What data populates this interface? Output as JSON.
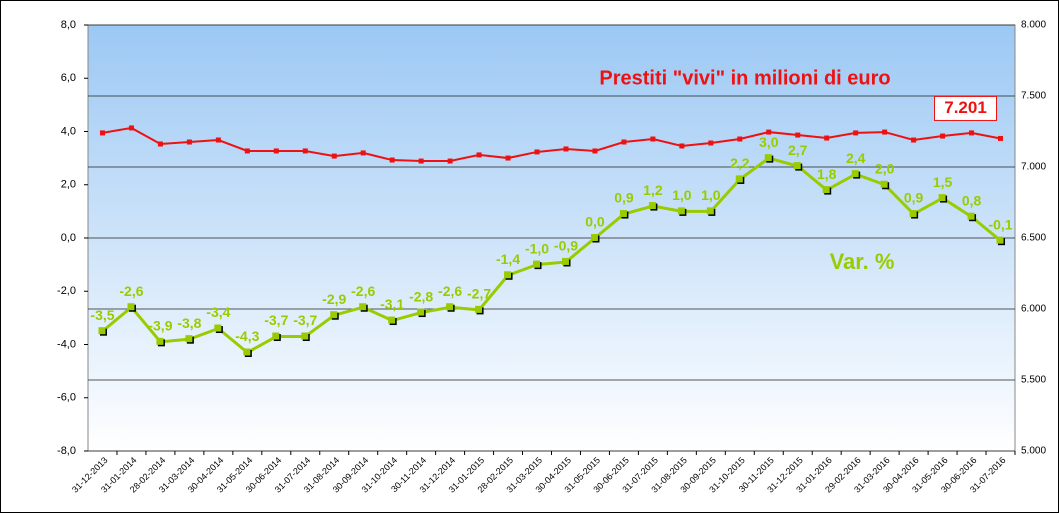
{
  "chart_data": {
    "type": "line",
    "title": "Prestiti \"vivi\" in milioni di euro",
    "annotation": "Var. %",
    "categories": [
      "31-12-2013",
      "31-01-2014",
      "28-02-2014",
      "31-03-2014",
      "30-04-2014",
      "31-05-2014",
      "30-06-2014",
      "31-07-2014",
      "31-08-2014",
      "30-09-2014",
      "31-10-2014",
      "30-11-2014",
      "31-12-2014",
      "31-01-2015",
      "28-02-2015",
      "31-03-2015",
      "30-04-2015",
      "31-05-2015",
      "30-06-2015",
      "31-07-2015",
      "31-08-2015",
      "30-09-2015",
      "31-10-2015",
      "30-11-2015",
      "31-12-2015",
      "31-01-2016",
      "29-02-2016",
      "31-03-2016",
      "30-04-2016",
      "31-05-2016",
      "30-06-2016",
      "31-07-2016"
    ],
    "series": [
      {
        "name": "Var. %",
        "color": "#99cc00",
        "axis": "y",
        "values": [
          -3.5,
          -2.6,
          -3.9,
          -3.8,
          -3.4,
          -4.3,
          -3.7,
          -3.7,
          -2.9,
          -2.6,
          -3.1,
          -2.8,
          -2.6,
          -2.7,
          -1.4,
          -1.0,
          -0.9,
          0.0,
          0.9,
          1.2,
          1.0,
          1.0,
          2.2,
          3.0,
          2.7,
          1.8,
          2.4,
          2.0,
          0.9,
          1.5,
          0.8,
          -0.1
        ],
        "value_labels": [
          "-3,5",
          "-2,6",
          "-3,9",
          "-3,8",
          "-3,4",
          "-4,3",
          "-3,7",
          "-3,7",
          "-2,9",
          "-2,6",
          "-3,1",
          "-2,8",
          "-2,6",
          "-2,7",
          "-1,4",
          "-1,0",
          "-0,9",
          "0,0",
          "0,9",
          "1,2",
          "1,0",
          "1,0",
          "2,2",
          "3,0",
          "2,7",
          "1,8",
          "2,4",
          "2,0",
          "0,9",
          "1,5",
          "0,8",
          "-0,1"
        ]
      },
      {
        "name": "Prestiti \"vivi\" in milioni di euro",
        "color": "#ee1111",
        "axis": "y2",
        "values": [
          7240,
          7275,
          7162,
          7176,
          7190,
          7113,
          7113,
          7113,
          7077,
          7099,
          7049,
          7042,
          7042,
          7085,
          7063,
          7106,
          7127,
          7113,
          7176,
          7197,
          7148,
          7169,
          7197,
          7246,
          7225,
          7204,
          7240,
          7246,
          7190,
          7218,
          7240,
          7201
        ],
        "value_labels": [
          null,
          null,
          null,
          null,
          null,
          null,
          null,
          null,
          null,
          null,
          null,
          null,
          null,
          null,
          null,
          null,
          null,
          null,
          null,
          null,
          null,
          null,
          null,
          null,
          null,
          null,
          null,
          null,
          null,
          null,
          null,
          "7.201"
        ]
      }
    ],
    "ylim": [
      -8,
      8
    ],
    "yticks": [
      {
        "value": -8,
        "label": "-8,0"
      },
      {
        "value": -6,
        "label": "-6,0"
      },
      {
        "value": -4,
        "label": "-4,0"
      },
      {
        "value": -2,
        "label": "-2,0"
      },
      {
        "value": 0,
        "label": "0,0"
      },
      {
        "value": 2,
        "label": "2,0"
      },
      {
        "value": 4,
        "label": "4,0"
      },
      {
        "value": 6,
        "label": "6,0"
      },
      {
        "value": 8,
        "label": "8,0"
      }
    ],
    "y2lim": [
      5000,
      8000
    ],
    "y2ticks": [
      {
        "value": 5000,
        "label": "5.000"
      },
      {
        "value": 5500,
        "label": "5.500"
      },
      {
        "value": 6000,
        "label": "6.000"
      },
      {
        "value": 6500,
        "label": "6.500"
      },
      {
        "value": 7000,
        "label": "7.000"
      },
      {
        "value": 7500,
        "label": "7.500"
      },
      {
        "value": 8000,
        "label": "8.000"
      }
    ],
    "grid": true
  }
}
